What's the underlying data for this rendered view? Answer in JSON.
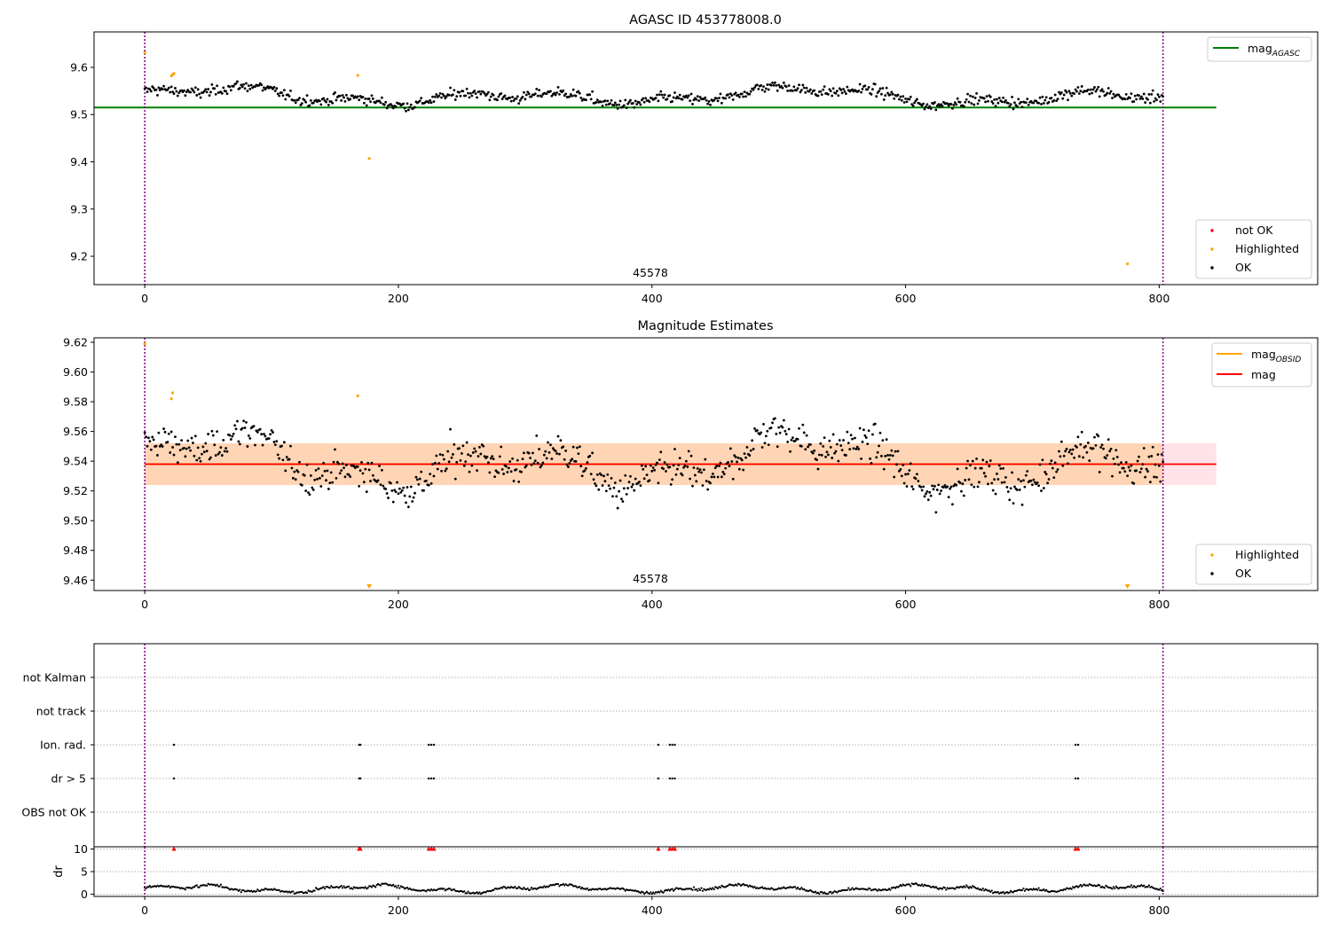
{
  "chart_data": [
    {
      "type": "scatter",
      "title": "AGASC ID 453778008.0",
      "xlim": [
        -40,
        925
      ],
      "ylim": [
        9.14,
        9.675
      ],
      "xticks": [
        0,
        200,
        400,
        600,
        800
      ],
      "yticks": [
        9.2,
        9.3,
        9.4,
        9.5,
        9.6
      ],
      "ytick_labels": [
        "9.2",
        "9.3",
        "9.4",
        "9.5",
        "9.6"
      ],
      "mag_agasc": 9.515,
      "mag_line_x": [
        0,
        845
      ],
      "vlines": [
        0,
        803
      ],
      "obsid_label": {
        "text": "45578",
        "x": 401
      },
      "series_ok": {
        "name": "OK",
        "color": "#000000",
        "x_range": [
          0,
          803
        ],
        "n_points": 803
      },
      "highlighted": {
        "name": "Highlighted",
        "color": "#FFA500",
        "x": [
          0,
          21,
          22,
          23,
          168,
          177,
          775
        ],
        "y": [
          9.631,
          9.582,
          9.585,
          9.587,
          9.583,
          9.407,
          9.184
        ]
      },
      "legend_upper": [
        {
          "label": "mag",
          "sub": "AGASC",
          "color": "#008000"
        }
      ],
      "legend_lower": [
        {
          "label": "not OK",
          "color": "#FF0000"
        },
        {
          "label": "Highlighted",
          "color": "#FFA500"
        },
        {
          "label": "OK",
          "color": "#000000"
        }
      ]
    },
    {
      "type": "scatter",
      "title": "Magnitude Estimates",
      "xlim": [
        -40,
        925
      ],
      "ylim": [
        9.453,
        9.623
      ],
      "xticks": [
        0,
        200,
        400,
        600,
        800
      ],
      "yticks": [
        9.46,
        9.48,
        9.5,
        9.52,
        9.54,
        9.56,
        9.58,
        9.6,
        9.62
      ],
      "ytick_labels": [
        "9.46",
        "9.48",
        "9.50",
        "9.52",
        "9.54",
        "9.56",
        "9.58",
        "9.60",
        "9.62"
      ],
      "mag": 9.538,
      "mag_band": [
        9.524,
        9.552
      ],
      "mag_line_x": [
        0,
        845
      ],
      "vlines": [
        0,
        803
      ],
      "obsid_label": {
        "text": "45578",
        "x": 401
      },
      "highlighted": {
        "name": "Highlighted",
        "color": "#FFA500",
        "x": [
          0,
          21,
          22,
          168
        ],
        "y": [
          9.619,
          9.582,
          9.586,
          9.584
        ]
      },
      "offscale_low": {
        "x": [
          177,
          775
        ]
      },
      "legend_upper": [
        {
          "label": "mag",
          "sub": "OBSID",
          "color": "#FFA500"
        },
        {
          "label": "mag",
          "sub": "",
          "color": "#FF0000"
        }
      ],
      "legend_lower": [
        {
          "label": "Highlighted",
          "color": "#FFA500"
        },
        {
          "label": "OK",
          "color": "#000000"
        }
      ]
    },
    {
      "type": "scatter",
      "title": "",
      "xlim": [
        -40,
        925
      ],
      "vlines": [
        0,
        803
      ],
      "flag_rows": [
        "not Kalman",
        "not track",
        "Ion. rad.",
        "dr > 5",
        "OBS not OK"
      ],
      "flags": {
        "Ion. rad.": [
          23,
          169,
          170,
          224,
          226,
          228,
          405,
          414,
          416,
          418,
          734,
          736
        ],
        "dr > 5": [
          23,
          169,
          170,
          224,
          226,
          228,
          405,
          414,
          416,
          418,
          734,
          736
        ]
      }
    },
    {
      "type": "scatter",
      "xlim": [
        -40,
        925
      ],
      "ylim": [
        -0.5,
        10.5
      ],
      "ylabel": "dr",
      "yticks": [
        0,
        5,
        10
      ],
      "ytick_labels": [
        "0",
        "5",
        "10"
      ],
      "xticks": [
        0,
        200,
        400,
        600,
        800
      ],
      "vlines": [
        0,
        803
      ],
      "clipped_x": [
        23,
        169,
        170,
        224,
        226,
        228,
        405,
        414,
        416,
        418,
        734,
        736
      ]
    }
  ]
}
